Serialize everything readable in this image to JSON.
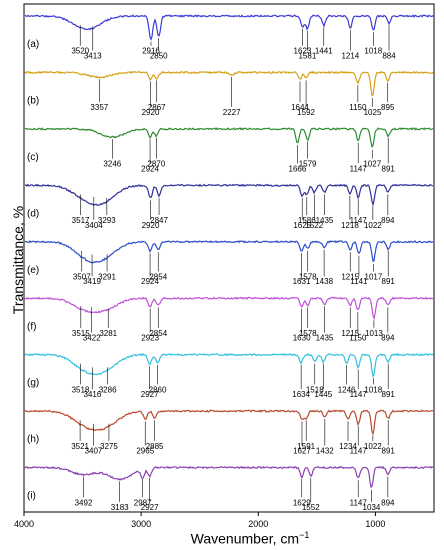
{
  "chart_data": {
    "type": "line",
    "xlabel": "Wavenumber, cm",
    "xlabel_superscript": "−1",
    "ylabel": "Transmittance, %",
    "xlim": [
      4000,
      500
    ],
    "x_ticks": [
      "4000",
      "3000",
      "2000",
      "1000"
    ],
    "x_tick_values": [
      4000,
      3000,
      2000,
      1000
    ],
    "series": [
      {
        "name": "(a)",
        "color": "#3b3bd6",
        "peaks": [
          {
            "label": "3520",
            "x": 3520,
            "depth": 0.3
          },
          {
            "label": "3413",
            "x": 3413,
            "depth": 0.35
          },
          {
            "label": "2916",
            "x": 2916,
            "depth": 1.0
          },
          {
            "label": "2850",
            "x": 2850,
            "depth": 0.85
          },
          {
            "label": "1623",
            "x": 1623,
            "depth": 0.45
          },
          {
            "label": "1581",
            "x": 1581,
            "depth": 0.55
          },
          {
            "label": "1441",
            "x": 1441,
            "depth": 0.4
          },
          {
            "label": "1214",
            "x": 1214,
            "depth": 0.5
          },
          {
            "label": "1018",
            "x": 1018,
            "depth": 0.6
          },
          {
            "label": "884",
            "x": 884,
            "depth": 0.3
          }
        ]
      },
      {
        "name": "(b)",
        "color": "#d4a017",
        "peaks": [
          {
            "label": "3357",
            "x": 3357,
            "depth": 0.2
          },
          {
            "label": "2920",
            "x": 2920,
            "depth": 0.3
          },
          {
            "label": "2867",
            "x": 2867,
            "depth": 0.25
          },
          {
            "label": "2227",
            "x": 2227,
            "depth": 0.1
          },
          {
            "label": "1644",
            "x": 1644,
            "depth": 0.3
          },
          {
            "label": "1592",
            "x": 1592,
            "depth": 0.25
          },
          {
            "label": "1150",
            "x": 1150,
            "depth": 0.45
          },
          {
            "label": "1025",
            "x": 1025,
            "depth": 1.0
          },
          {
            "label": "895",
            "x": 895,
            "depth": 0.35
          }
        ]
      },
      {
        "name": "(c)",
        "color": "#2e8b2e",
        "peaks": [
          {
            "label": "3246",
            "x": 3246,
            "depth": 0.35
          },
          {
            "label": "2924",
            "x": 2924,
            "depth": 0.35
          },
          {
            "label": "2870",
            "x": 2870,
            "depth": 0.3
          },
          {
            "label": "1666",
            "x": 1666,
            "depth": 0.6
          },
          {
            "label": "1579",
            "x": 1579,
            "depth": 0.45
          },
          {
            "label": "1147",
            "x": 1147,
            "depth": 0.5
          },
          {
            "label": "1027",
            "x": 1027,
            "depth": 0.8
          },
          {
            "label": "891",
            "x": 891,
            "depth": 0.3
          }
        ]
      },
      {
        "name": "(d)",
        "color": "#30309a",
        "peaks": [
          {
            "label": "3517",
            "x": 3517,
            "depth": 0.3
          },
          {
            "label": "3404",
            "x": 3404,
            "depth": 0.4
          },
          {
            "label": "3293",
            "x": 3293,
            "depth": 0.45
          },
          {
            "label": "2920",
            "x": 2920,
            "depth": 0.55
          },
          {
            "label": "2847",
            "x": 2847,
            "depth": 0.45
          },
          {
            "label": "1625",
            "x": 1625,
            "depth": 0.45
          },
          {
            "label": "1586",
            "x": 1586,
            "depth": 0.4
          },
          {
            "label": "1522",
            "x": 1522,
            "depth": 0.3
          },
          {
            "label": "1435",
            "x": 1435,
            "depth": 0.3
          },
          {
            "label": "1218",
            "x": 1218,
            "depth": 0.35
          },
          {
            "label": "1147",
            "x": 1147,
            "depth": 0.5
          },
          {
            "label": "1022",
            "x": 1022,
            "depth": 0.8
          },
          {
            "label": "894",
            "x": 894,
            "depth": 0.3
          }
        ]
      },
      {
        "name": "(e)",
        "color": "#2a4ec8",
        "peaks": [
          {
            "label": "3507",
            "x": 3507,
            "depth": 0.3
          },
          {
            "label": "3419",
            "x": 3419,
            "depth": 0.45
          },
          {
            "label": "3291",
            "x": 3291,
            "depth": 0.45
          },
          {
            "label": "2924",
            "x": 2924,
            "depth": 0.4
          },
          {
            "label": "2854",
            "x": 2854,
            "depth": 0.35
          },
          {
            "label": "1631",
            "x": 1631,
            "depth": 0.4
          },
          {
            "label": "1578",
            "x": 1578,
            "depth": 0.3
          },
          {
            "label": "1438",
            "x": 1438,
            "depth": 0.25
          },
          {
            "label": "1215",
            "x": 1215,
            "depth": 0.35
          },
          {
            "label": "1141",
            "x": 1141,
            "depth": 0.5
          },
          {
            "label": "1017",
            "x": 1017,
            "depth": 0.85
          },
          {
            "label": "891",
            "x": 891,
            "depth": 0.3
          }
        ]
      },
      {
        "name": "(f)",
        "color": "#c050d8",
        "peaks": [
          {
            "label": "3515",
            "x": 3515,
            "depth": 0.25
          },
          {
            "label": "3422",
            "x": 3422,
            "depth": 0.3
          },
          {
            "label": "3281",
            "x": 3281,
            "depth": 0.35
          },
          {
            "label": "2923",
            "x": 2923,
            "depth": 0.35
          },
          {
            "label": "2854",
            "x": 2854,
            "depth": 0.3
          },
          {
            "label": "1630",
            "x": 1630,
            "depth": 0.35
          },
          {
            "label": "1578",
            "x": 1578,
            "depth": 0.3
          },
          {
            "label": "1435",
            "x": 1435,
            "depth": 0.25
          },
          {
            "label": "1215",
            "x": 1215,
            "depth": 0.3
          },
          {
            "label": "1150",
            "x": 1150,
            "depth": 0.5
          },
          {
            "label": "1013",
            "x": 1013,
            "depth": 0.85
          },
          {
            "label": "894",
            "x": 894,
            "depth": 0.3
          }
        ]
      },
      {
        "name": "(g)",
        "color": "#30c0e0",
        "peaks": [
          {
            "label": "3518",
            "x": 3518,
            "depth": 0.3
          },
          {
            "label": "3416",
            "x": 3416,
            "depth": 0.45
          },
          {
            "label": "3286",
            "x": 3286,
            "depth": 0.45
          },
          {
            "label": "2927",
            "x": 2927,
            "depth": 0.4
          },
          {
            "label": "2860",
            "x": 2860,
            "depth": 0.35
          },
          {
            "label": "1634",
            "x": 1634,
            "depth": 0.35
          },
          {
            "label": "1518",
            "x": 1518,
            "depth": 0.3
          },
          {
            "label": "1445",
            "x": 1445,
            "depth": 0.3
          },
          {
            "label": "1246",
            "x": 1246,
            "depth": 0.35
          },
          {
            "label": "1147",
            "x": 1147,
            "depth": 0.55
          },
          {
            "label": "1018",
            "x": 1018,
            "depth": 0.9
          },
          {
            "label": "891",
            "x": 891,
            "depth": 0.3
          }
        ]
      },
      {
        "name": "(h)",
        "color": "#b84a2e",
        "peaks": [
          {
            "label": "3521",
            "x": 3521,
            "depth": 0.3
          },
          {
            "label": "3407",
            "x": 3407,
            "depth": 0.45
          },
          {
            "label": "3275",
            "x": 3275,
            "depth": 0.45
          },
          {
            "label": "2965",
            "x": 2965,
            "depth": 0.35
          },
          {
            "label": "2885",
            "x": 2885,
            "depth": 0.3
          },
          {
            "label": "1627",
            "x": 1627,
            "depth": 0.35
          },
          {
            "label": "1591",
            "x": 1591,
            "depth": 0.3
          },
          {
            "label": "1432",
            "x": 1432,
            "depth": 0.25
          },
          {
            "label": "1234",
            "x": 1234,
            "depth": 0.35
          },
          {
            "label": "1147",
            "x": 1147,
            "depth": 0.55
          },
          {
            "label": "1022",
            "x": 1022,
            "depth": 0.95
          },
          {
            "label": "891",
            "x": 891,
            "depth": 0.3
          }
        ]
      },
      {
        "name": "(i)",
        "color": "#8a3fb0",
        "peaks": [
          {
            "label": "3492",
            "x": 3492,
            "depth": 0.3
          },
          {
            "label": "3183",
            "x": 3183,
            "depth": 0.5
          },
          {
            "label": "2987",
            "x": 2987,
            "depth": 0.4
          },
          {
            "label": "2927",
            "x": 2927,
            "depth": 0.35
          },
          {
            "label": "1629",
            "x": 1629,
            "depth": 0.4
          },
          {
            "label": "1552",
            "x": 1552,
            "depth": 0.35
          },
          {
            "label": "1147",
            "x": 1147,
            "depth": 0.45
          },
          {
            "label": "1034",
            "x": 1034,
            "depth": 0.85
          },
          {
            "label": "894",
            "x": 894,
            "depth": 0.3
          }
        ]
      }
    ]
  }
}
